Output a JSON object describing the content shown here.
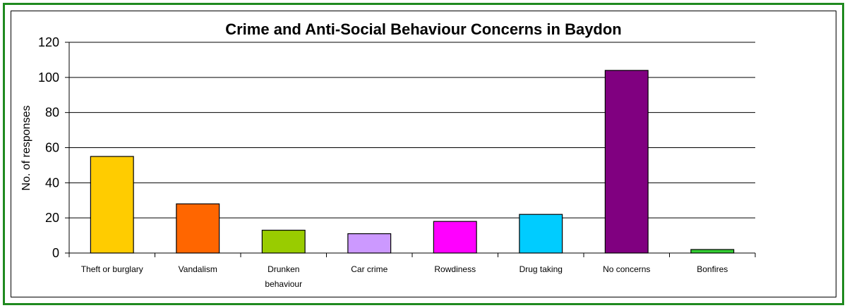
{
  "chart_data": {
    "type": "bar",
    "title": "Crime and Anti-Social Behaviour Concerns in Baydon",
    "ylabel": "No. of responses",
    "ylim": [
      0,
      120
    ],
    "yticks": [
      0,
      20,
      40,
      60,
      80,
      100,
      120
    ],
    "grid": true,
    "categories": [
      [
        "Theft or burglary"
      ],
      [
        "Vandalism"
      ],
      [
        "Drunken",
        "behaviour"
      ],
      [
        "Car crime"
      ],
      [
        "Rowdiness"
      ],
      [
        "Drug taking"
      ],
      [
        "No concerns"
      ],
      [
        "Bonfires"
      ]
    ],
    "values": [
      55,
      28,
      13,
      11,
      18,
      22,
      104,
      2
    ],
    "colors": [
      "#ffcc00",
      "#ff6600",
      "#99cc00",
      "#cc99ff",
      "#ff00ff",
      "#00ccff",
      "#800080",
      "#33cc33"
    ]
  }
}
